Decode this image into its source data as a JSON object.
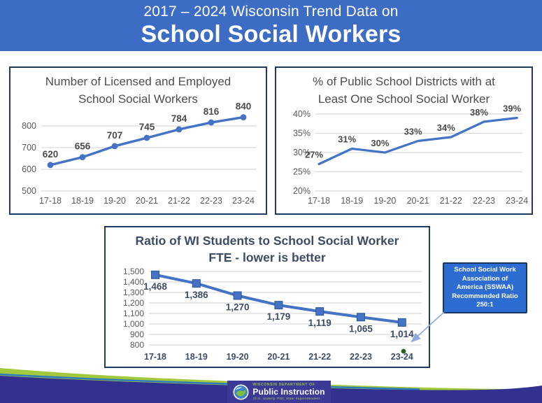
{
  "header": {
    "line1": "2017 – 2024 Wisconsin Trend Data on",
    "line2": "School Social Workers"
  },
  "chart_data": [
    {
      "id": "licensed-count",
      "type": "line",
      "title": "Number of Licensed and Employed School Social Workers",
      "title_display": "Number of Licensed and Employed\nSchool Social Workers",
      "categories": [
        "17-18",
        "18-19",
        "19-20",
        "20-21",
        "21-22",
        "22-23",
        "23-24"
      ],
      "values": [
        620,
        656,
        707,
        745,
        784,
        816,
        840
      ],
      "value_labels": [
        "620",
        "656",
        "707",
        "745",
        "784",
        "816",
        "840"
      ],
      "ylim": [
        500,
        800
      ],
      "ytick_values": [
        500,
        600,
        700,
        800
      ],
      "ytick_labels": [
        "500",
        "600",
        "700",
        "800"
      ],
      "xlabel": "",
      "ylabel": "",
      "legend": "none",
      "grid": "horizontal",
      "marker": "circle",
      "label_position": "above",
      "line_color": "#4472C4"
    },
    {
      "id": "district-pct",
      "type": "line",
      "title": "% of Public School Districts with at Least One School Social Worker",
      "title_display": "% of Public School Districts with at\nLeast One School Social Worker",
      "categories": [
        "17-18",
        "18-19",
        "19-20",
        "20-21",
        "21-22",
        "22-23",
        "23-24"
      ],
      "values": [
        27,
        31,
        30,
        33,
        34,
        38,
        39
      ],
      "value_labels": [
        "27%",
        "31%",
        "30%",
        "33%",
        "34%",
        "38%",
        "39%"
      ],
      "ylim": [
        20,
        40
      ],
      "ytick_values": [
        20,
        25,
        30,
        35,
        40
      ],
      "ytick_labels": [
        "20%",
        "25%",
        "30%",
        "35%",
        "40%"
      ],
      "xlabel": "",
      "ylabel": "",
      "legend": "none",
      "grid": "horizontal",
      "marker": "none",
      "label_position": "above",
      "line_color": "#4472C4"
    },
    {
      "id": "ratio-fte",
      "type": "line",
      "title": "Ratio of WI Students to School Social Worker FTE - lower is better",
      "title_display": "Ratio of WI Students to School Social Worker\nFTE - lower is better",
      "categories": [
        "17-18",
        "18-19",
        "19-20",
        "20-21",
        "21-22",
        "22-23",
        "23-24"
      ],
      "values": [
        1468,
        1386,
        1270,
        1179,
        1119,
        1065,
        1014
      ],
      "value_labels": [
        "1,468",
        "1,386",
        "1,270",
        "1,179",
        "1,119",
        "1,065",
        "1,014"
      ],
      "ylim": [
        800,
        1500
      ],
      "ytick_values": [
        800,
        900,
        1000,
        1100,
        1200,
        1300,
        1400,
        1500
      ],
      "ytick_labels": [
        "800",
        "900",
        "1,000",
        "1,100",
        "1,200",
        "1,300",
        "1,400",
        "1,500"
      ],
      "xlabel": "",
      "ylabel": "",
      "legend": "none",
      "grid": "horizontal",
      "marker": "square",
      "label_position": "below",
      "line_color": "#4472C4",
      "annotation": {
        "text": "SSWAA recommended ratio reference point",
        "dot_color": "#2B5E1E"
      }
    }
  ],
  "callout": {
    "text": "School Social Work Association of America (SSWAA) Recommended Ratio 250:1",
    "display": "School Social Work\nAssociation of\nAmerica (SSWAA)\nRecommended Ratio\n250:1"
  },
  "footer": {
    "dept_line": "WISCONSIN DEPARTMENT OF",
    "dept_name": "Public Instruction",
    "superintendent": "Jill K. Underly, PhD, State Superintendent"
  },
  "colors": {
    "header_bg": "#3C6CC4",
    "series_blue": "#4472C4",
    "box_border": "#1F3864",
    "callout_bg": "#2D6DD2",
    "footer_purple": "#33318F",
    "wave_green": "#A2C83C",
    "wave_blue_accent": "#2B7BBF",
    "annotation_dot_green": "#2B5E1E",
    "arrow_blue": "#8FAADC"
  }
}
